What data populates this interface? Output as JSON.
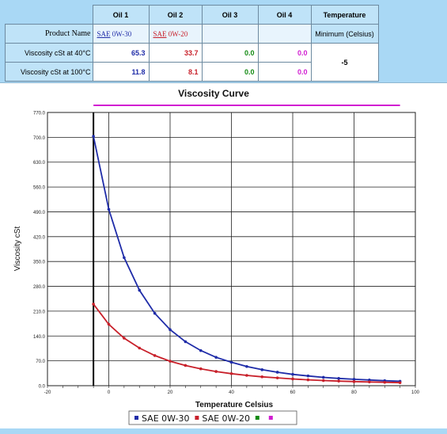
{
  "table": {
    "product_name_label": "Product Name",
    "visc40_label": "Viscosity cSt at 40°C",
    "visc100_label": "Viscosity cSt at 100°C",
    "oils": [
      {
        "header": "Oil 1",
        "name_prefix": "SAE",
        "name_rest": " 0W-30",
        "visc40": "65.3",
        "visc100": "11.8",
        "color": "#1f2ca8"
      },
      {
        "header": "Oil 2",
        "name_prefix": "SAE",
        "name_rest": " 0W-20",
        "visc40": "33.7",
        "visc100": "8.1",
        "color": "#c8202a"
      },
      {
        "header": "Oil 3",
        "name_prefix": "",
        "name_rest": "",
        "visc40": "0.0",
        "visc100": "0.0",
        "color": "#138a13"
      },
      {
        "header": "Oil 4",
        "name_prefix": "",
        "name_rest": "",
        "visc40": "0.0",
        "visc100": "0.0",
        "color": "#d11ed1"
      }
    ],
    "temperature": {
      "header": "Temperature",
      "sub": "Minimum (Celsius)",
      "value": "-5"
    }
  },
  "chart_data": {
    "type": "line",
    "title": "Viscosity Curve",
    "xlabel": "Temperature Celsius",
    "ylabel": "Viscosity cSt",
    "xlim": [
      -20,
      100
    ],
    "ylim": [
      0,
      770
    ],
    "xticks": [
      "-20",
      "0",
      "20",
      "40",
      "60",
      "80",
      "100"
    ],
    "yticks": [
      "0.0",
      "70.0",
      "140.0",
      "210.0",
      "280.0",
      "350.0",
      "420.0",
      "490.0",
      "560.0",
      "630.0",
      "700.0",
      "770.0"
    ],
    "grid": true,
    "legend_position": "bottom",
    "series": [
      {
        "name": "SAE 0W-30",
        "color": "#1f2ca8",
        "x": [
          -5,
          0,
          5,
          10,
          15,
          20,
          25,
          30,
          35,
          40,
          45,
          50,
          55,
          60,
          65,
          70,
          75,
          80,
          85,
          90,
          95
        ],
        "y": [
          703,
          497,
          361,
          269,
          204,
          158,
          124,
          99,
          80,
          66,
          54,
          45,
          38,
          32,
          27.5,
          23.5,
          20.5,
          18,
          16,
          14,
          12.5
        ]
      },
      {
        "name": "SAE 0W-20",
        "color": "#c8202a",
        "x": [
          -5,
          0,
          5,
          10,
          15,
          20,
          25,
          30,
          35,
          40,
          45,
          50,
          55,
          60,
          65,
          70,
          75,
          80,
          85,
          90,
          95
        ],
        "y": [
          230,
          173,
          134,
          106,
          85,
          69,
          57,
          47.5,
          40,
          34,
          29,
          25,
          22,
          19,
          16.5,
          14.5,
          13,
          11.5,
          10.5,
          9.5,
          8.5
        ]
      },
      {
        "name": "",
        "color": "#138a13",
        "x": [],
        "y": []
      },
      {
        "name": "",
        "color": "#d11ed1",
        "x": [
          -5,
          95
        ],
        "y": [
          0,
          0
        ]
      }
    ],
    "vertical_marker": {
      "x": -5,
      "color": "#000000"
    }
  }
}
